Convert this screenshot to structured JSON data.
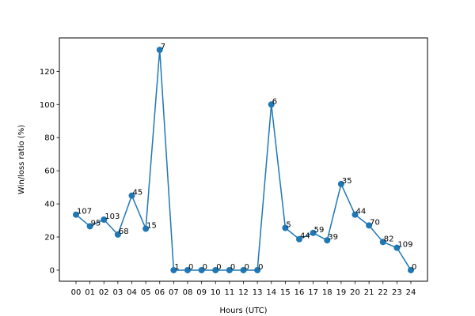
{
  "chart_data": {
    "type": "line",
    "xlabel": "Hours (UTC)",
    "ylabel": "Win/loss ratio (%)",
    "ylim": [
      -6.7,
      140.2
    ],
    "yticks": [
      0,
      20,
      40,
      60,
      80,
      100,
      120
    ],
    "categories": [
      "00",
      "01",
      "02",
      "03",
      "04",
      "05",
      "06",
      "07",
      "08",
      "09",
      "10",
      "11",
      "12",
      "13",
      "14",
      "15",
      "16",
      "17",
      "18",
      "19",
      "20",
      "21",
      "22",
      "23",
      "24"
    ],
    "values": [
      33.5,
      26.5,
      30.5,
      21.5,
      45,
      25,
      133,
      0,
      0,
      0,
      0,
      0,
      0,
      0,
      100,
      25.5,
      18.7,
      22.5,
      18,
      52,
      33.5,
      27,
      17,
      13.5,
      0
    ],
    "point_labels": [
      "107",
      "95",
      "103",
      "68",
      "45",
      "15",
      "7",
      "1",
      "0",
      "0",
      "0",
      "0",
      "0",
      "0",
      "6",
      "5",
      "44",
      "59",
      "39",
      "35",
      "44",
      "70",
      "82",
      "109",
      "0"
    ],
    "line_color": "#1f77b4",
    "grid": false,
    "legend": "none"
  }
}
